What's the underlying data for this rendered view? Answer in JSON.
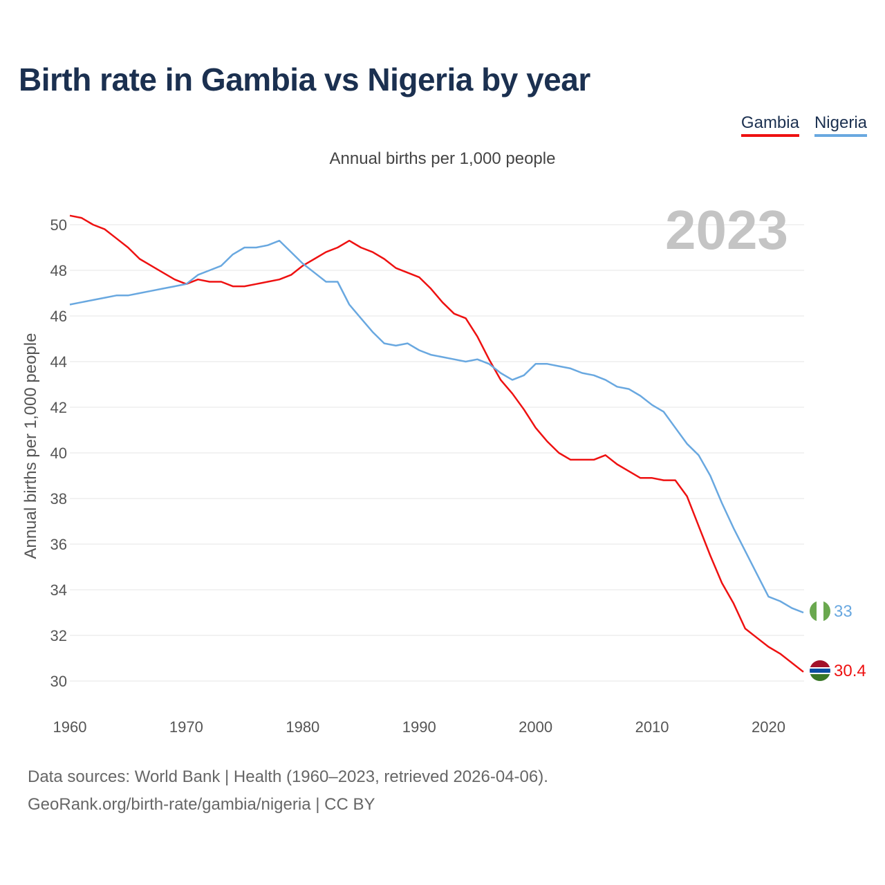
{
  "chart_data": {
    "type": "line",
    "title": "Birth rate in Gambia vs Nigeria by year",
    "subtitle": "Annual births per 1,000 people",
    "ylabel": "Annual births per 1,000 people",
    "xlabel": "",
    "current_year": "2023",
    "x_ticks": [
      1960,
      1970,
      1980,
      1990,
      2000,
      2010,
      2020
    ],
    "y_ticks": [
      30,
      32,
      34,
      36,
      38,
      40,
      42,
      44,
      46,
      48,
      50
    ],
    "ylim": [
      30,
      50
    ],
    "xlim": [
      1960,
      2023
    ],
    "x": [
      1960,
      1961,
      1962,
      1963,
      1964,
      1965,
      1966,
      1967,
      1968,
      1969,
      1970,
      1971,
      1972,
      1973,
      1974,
      1975,
      1976,
      1977,
      1978,
      1979,
      1980,
      1981,
      1982,
      1983,
      1984,
      1985,
      1986,
      1987,
      1988,
      1989,
      1990,
      1991,
      1992,
      1993,
      1994,
      1995,
      1996,
      1997,
      1998,
      1999,
      2000,
      2001,
      2002,
      2003,
      2004,
      2005,
      2006,
      2007,
      2008,
      2009,
      2010,
      2011,
      2012,
      2013,
      2014,
      2015,
      2016,
      2017,
      2018,
      2019,
      2020,
      2021,
      2022,
      2023
    ],
    "series": [
      {
        "name": "Gambia",
        "color": "#ee1111",
        "end_label": "30.4",
        "values": [
          50.4,
          50.3,
          50.0,
          49.8,
          49.4,
          49.0,
          48.5,
          48.2,
          47.9,
          47.6,
          47.4,
          47.6,
          47.5,
          47.5,
          47.3,
          47.3,
          47.4,
          47.5,
          47.6,
          47.8,
          48.2,
          48.5,
          48.8,
          49.0,
          49.3,
          49.0,
          48.8,
          48.5,
          48.1,
          47.9,
          47.7,
          47.2,
          46.6,
          46.1,
          45.9,
          45.1,
          44.1,
          43.2,
          42.6,
          41.9,
          41.1,
          40.5,
          40.0,
          39.7,
          39.7,
          39.7,
          39.9,
          39.5,
          39.2,
          38.9,
          38.9,
          38.8,
          38.8,
          38.1,
          36.8,
          35.5,
          34.3,
          33.4,
          32.3,
          31.9,
          31.5,
          31.2,
          30.8,
          30.4
        ]
      },
      {
        "name": "Nigeria",
        "color": "#69a8e0",
        "end_label": "33",
        "values": [
          46.5,
          46.6,
          46.7,
          46.8,
          46.9,
          46.9,
          47.0,
          47.1,
          47.2,
          47.3,
          47.4,
          47.8,
          48.0,
          48.2,
          48.7,
          49.0,
          49.0,
          49.1,
          49.3,
          48.8,
          48.3,
          47.9,
          47.5,
          47.5,
          46.5,
          45.9,
          45.3,
          44.8,
          44.7,
          44.8,
          44.5,
          44.3,
          44.2,
          44.1,
          44.0,
          44.1,
          43.9,
          43.5,
          43.2,
          43.4,
          43.9,
          43.9,
          43.8,
          43.7,
          43.5,
          43.4,
          43.2,
          42.9,
          42.8,
          42.5,
          42.1,
          41.8,
          41.1,
          40.4,
          39.9,
          39.0,
          37.8,
          36.7,
          35.7,
          34.7,
          33.7,
          33.5,
          33.2,
          33.0
        ]
      }
    ]
  },
  "footer": {
    "line1": "Data sources: World Bank | Health (1960–2023, retrieved 2026-04-06).",
    "line2": "GeoRank.org/birth-rate/gambia/nigeria | CC BY"
  }
}
